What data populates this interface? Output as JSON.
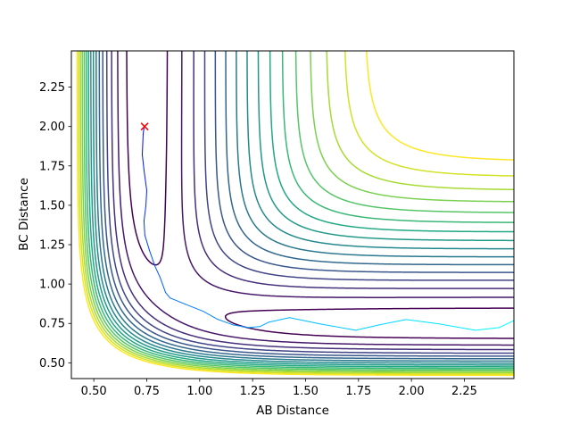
{
  "chart_data": {
    "type": "contour",
    "title": "",
    "xlabel": "AB Distance",
    "ylabel": "BC Distance",
    "xlim": [
      0.394,
      2.484
    ],
    "ylim": [
      0.4,
      2.48
    ],
    "xticks": [
      "0.50",
      "0.75",
      "1.00",
      "1.25",
      "1.50",
      "1.75",
      "2.00",
      "2.25"
    ],
    "yticks": [
      "0.50",
      "0.75",
      "1.00",
      "1.25",
      "1.50",
      "1.75",
      "2.00",
      "2.25"
    ],
    "grid": false,
    "colormap": "viridis",
    "levels": [
      -4.58,
      -4.353,
      -4.127,
      -3.9,
      -3.673,
      -3.447,
      -3.22,
      -2.993,
      -2.767,
      -2.54,
      -2.313,
      -2.087,
      -1.86,
      -1.633,
      -1.407,
      -1.18
    ],
    "trajectory": {
      "color_start": "#0000ff",
      "color_end": "#00ffff",
      "x": [
        0.737,
        0.733,
        0.729,
        0.737,
        0.75,
        0.746,
        0.737,
        0.741,
        0.763,
        0.788,
        0.813,
        0.839,
        0.86,
        0.932,
        1.017,
        1.085,
        1.157,
        1.229,
        1.284,
        1.326,
        1.424,
        1.568,
        1.737,
        1.847,
        1.975,
        2.131,
        2.301,
        2.415,
        2.484
      ],
      "y": [
        1.991,
        1.952,
        1.821,
        1.724,
        1.594,
        1.497,
        1.4,
        1.31,
        1.213,
        1.116,
        1.042,
        0.946,
        0.912,
        0.872,
        0.827,
        0.776,
        0.741,
        0.724,
        0.73,
        0.758,
        0.787,
        0.747,
        0.707,
        0.741,
        0.775,
        0.747,
        0.707,
        0.724,
        0.768
      ]
    },
    "start_marker": {
      "x": 0.74,
      "y": 2.0,
      "symbol": "x",
      "color": "#ff0000"
    }
  }
}
